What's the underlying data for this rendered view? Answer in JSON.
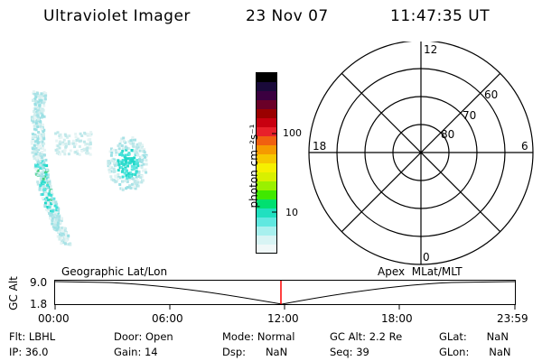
{
  "header": {
    "title": "Ultraviolet Imager",
    "date": "23 Nov 07",
    "time": "11:47:35 UT"
  },
  "colorbar": {
    "unit_label": "photon cm⁻²s⁻¹",
    "ticks": [
      "100",
      "10"
    ],
    "colors": [
      "#000000",
      "#1a0a3a",
      "#3b0040",
      "#6a0028",
      "#9a0000",
      "#c80010",
      "#e8202a",
      "#f06010",
      "#f59a00",
      "#f6c800",
      "#f6f000",
      "#d8f000",
      "#9af000",
      "#40e800",
      "#00e070",
      "#20e0c0",
      "#60e8e0",
      "#a8f0ee",
      "#d8f4f4",
      "#f0f8f8"
    ]
  },
  "polar": {
    "mlt_labels": [
      "12",
      "18",
      "6",
      "0"
    ],
    "lat_labels": [
      "60",
      "70",
      "80"
    ]
  },
  "timeline": {
    "left_label": "Geographic Lat/Lon",
    "right_label": "Apex  MLat/MLT",
    "axis_label": "GC Alt",
    "ymax": "9.0",
    "ymin": "1.8",
    "ticks": [
      "00:00",
      "06:00",
      "12:00",
      "18:00",
      "23:59"
    ],
    "marker_color": "#ff0000"
  },
  "info": {
    "filter": "Flt: LBHL",
    "ip": "IP: 36.0",
    "door": "Door: Open",
    "gain": "Gain: 14",
    "mode": "Mode: Normal",
    "dsp": "Dsp:      NaN",
    "gcalt": "GC Alt: 2.2 Re",
    "seq": "Seq: 39",
    "glat": "GLat:      NaN",
    "glon": "GLon:      NaN"
  }
}
